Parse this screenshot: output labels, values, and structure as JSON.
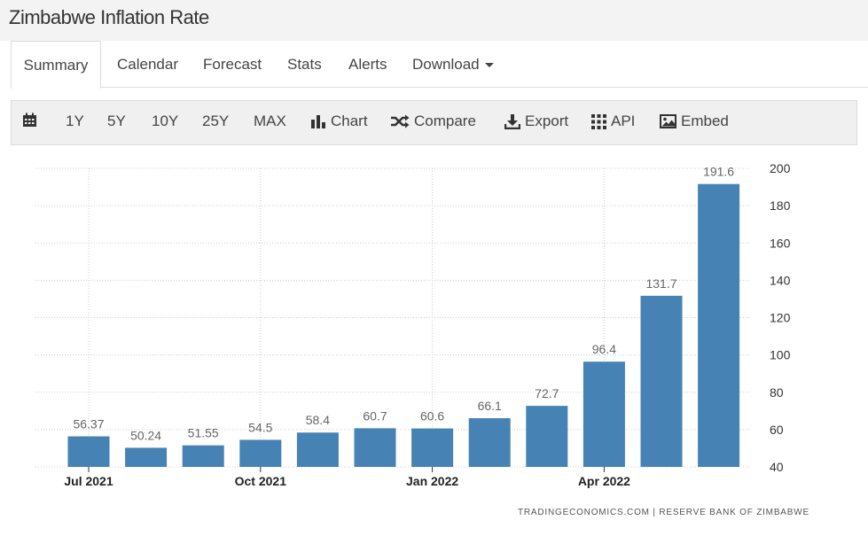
{
  "header": {
    "title": "Zimbabwe Inflation Rate"
  },
  "tabs": [
    {
      "label": "Summary",
      "active": true
    },
    {
      "label": "Calendar"
    },
    {
      "label": "Forecast"
    },
    {
      "label": "Stats"
    },
    {
      "label": "Alerts"
    },
    {
      "label": "Download",
      "has_dropdown": true
    }
  ],
  "toolbar": {
    "calendar_icon": "calendar-icon",
    "ranges": [
      "1Y",
      "5Y",
      "10Y",
      "25Y",
      "MAX"
    ],
    "chart_label": "Chart",
    "compare_label": "Compare",
    "export_label": "Export",
    "api_label": "API",
    "embed_label": "Embed"
  },
  "colors": {
    "bar": "#4682b4",
    "header_bg": "#f3f3f3",
    "toolbar_bg": "#f0f0f0",
    "grid": "#cccccc"
  },
  "chart_data": {
    "type": "bar",
    "x_tick_labels": [
      "Jul 2021",
      "Oct 2021",
      "Jan 2022",
      "Apr 2022"
    ],
    "values": [
      56.37,
      50.24,
      51.55,
      54.5,
      58.4,
      60.7,
      60.6,
      66.1,
      72.7,
      96.4,
      131.7,
      191.6
    ],
    "value_labels": [
      "56.37",
      "50.24",
      "51.55",
      "54.5",
      "58.4",
      "60.7",
      "60.6",
      "66.1",
      "72.7",
      "96.4",
      "131.7",
      "191.6"
    ],
    "y_ticks": [
      "40",
      "60",
      "80",
      "100",
      "120",
      "140",
      "160",
      "180",
      "200"
    ],
    "ylim": [
      40,
      200
    ],
    "y_axis_side": "right",
    "grid": true,
    "source": "TRADINGECONOMICS.COM  |  RESERVE BANK OF ZIMBABWE"
  }
}
